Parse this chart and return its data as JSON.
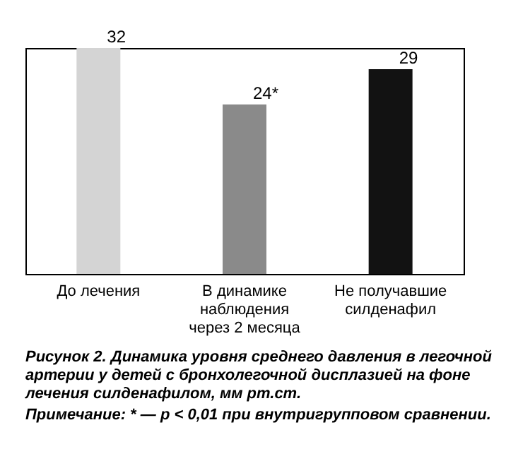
{
  "chart_data": {
    "type": "bar",
    "title": "Рисунок 2. Динамика уровня среднего давления в легочной артерии у детей с бронхолегочной дисплазией на фоне лечения силденафилом, мм рт.ст.",
    "annotations": [
      "Примечание: * — p < 0,01 при внутригрупповом сравнении."
    ],
    "categories": [
      "До лечения",
      "В динамике наблюдения через 2 месяца",
      "Не получавшие силденафил"
    ],
    "values": [
      32,
      24,
      29
    ],
    "colors": [
      "#d4d4d4",
      "#8a8a8a",
      "#121212"
    ],
    "value_labels": [
      "32",
      "24*",
      "29"
    ]
  }
}
